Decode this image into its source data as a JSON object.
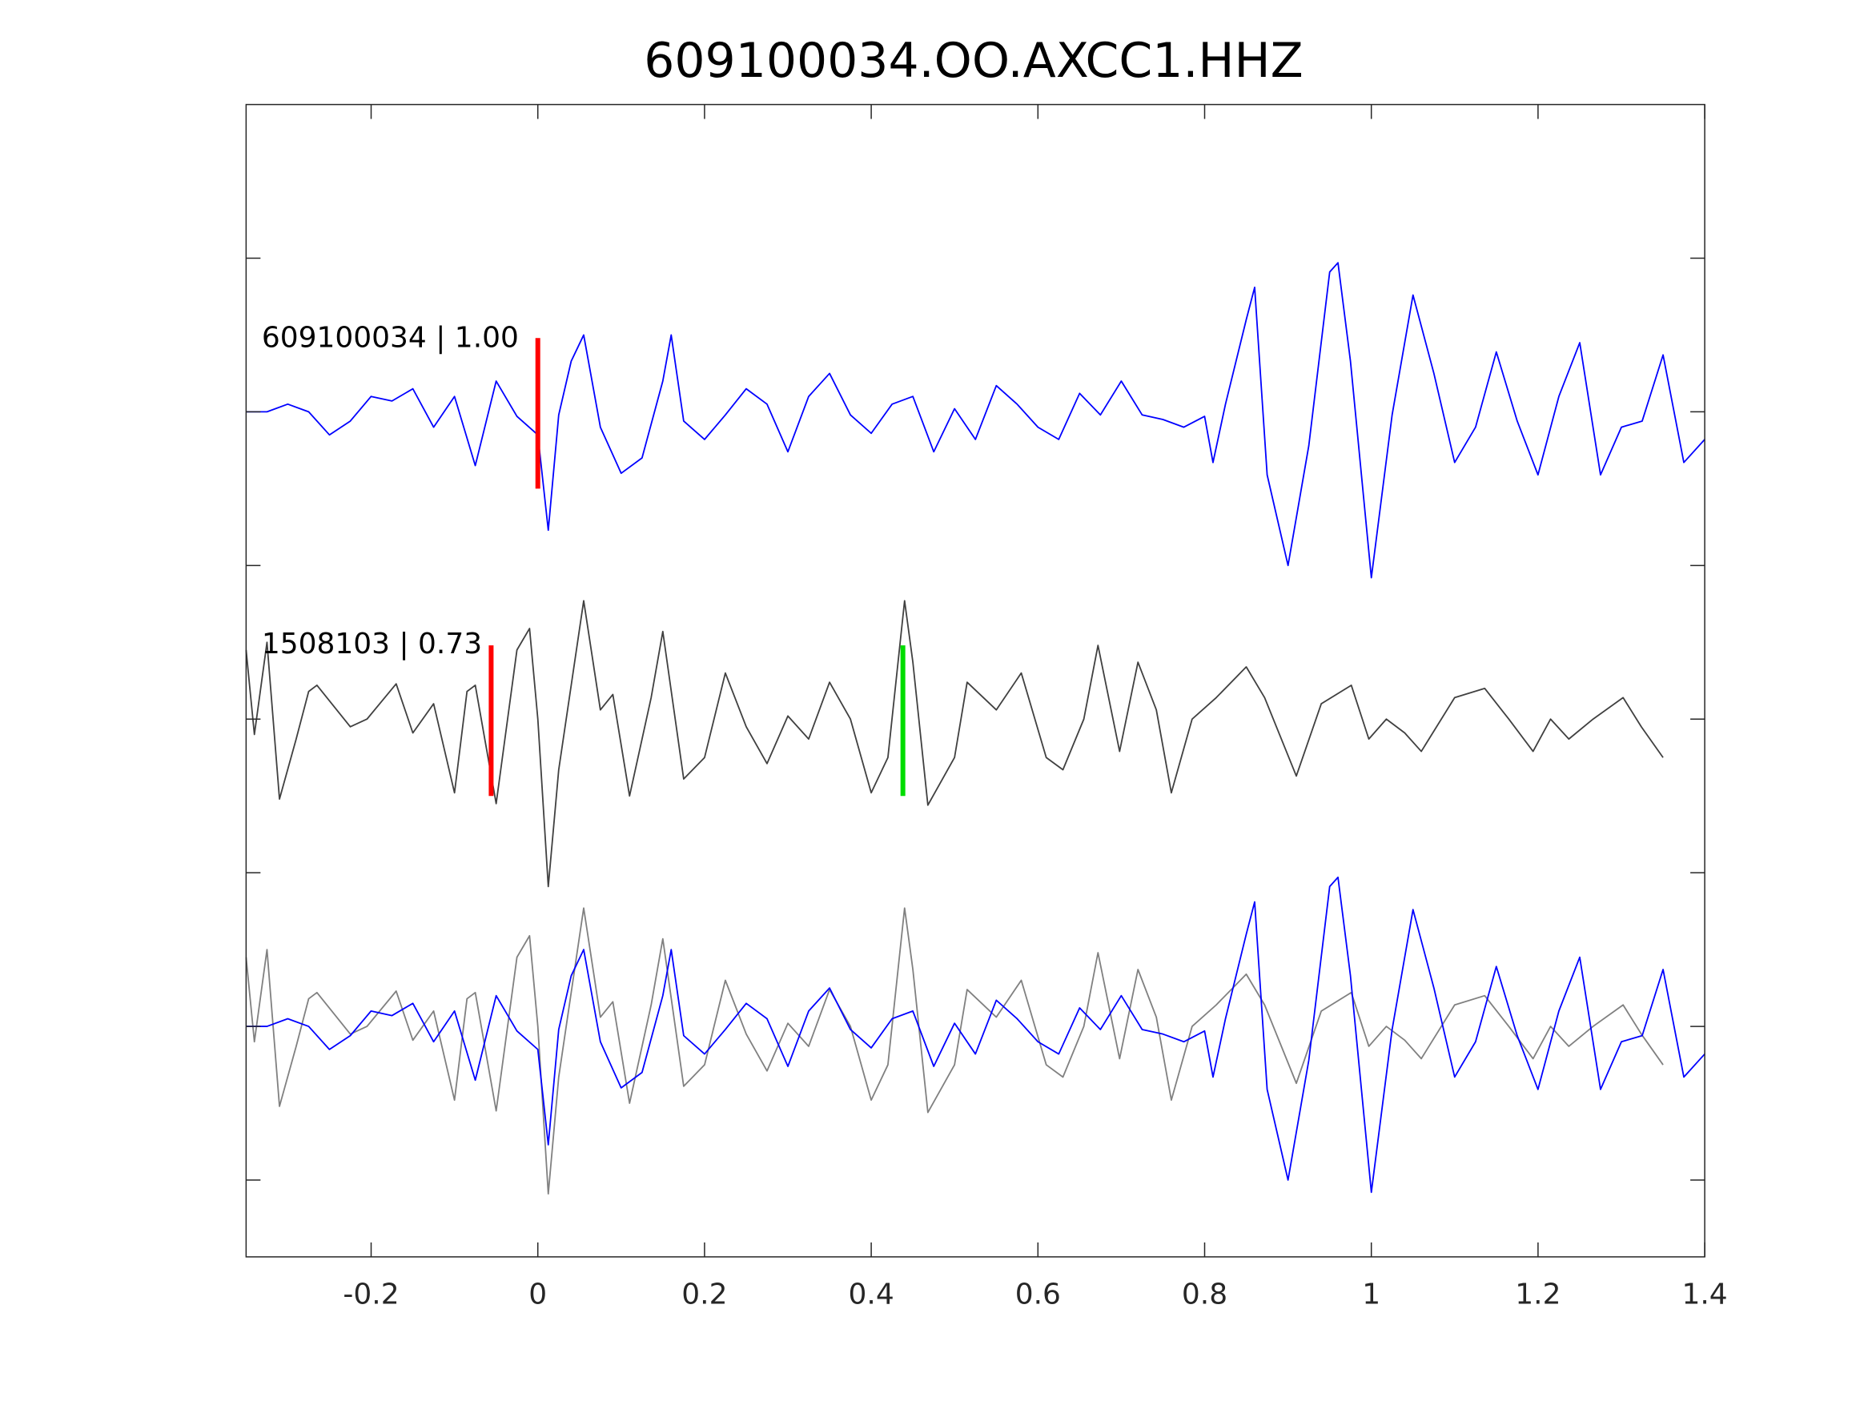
{
  "chart_data": {
    "type": "line",
    "title": "609100034.OO.AXCC1.HHZ",
    "xlabel": "",
    "ylabel": "",
    "xlim": [
      -0.35,
      1.4
    ],
    "ylim": [
      0,
      7.5
    ],
    "xticks": [
      -0.2,
      0,
      0.2,
      0.4,
      0.6,
      0.8,
      1,
      1.2,
      1.4
    ],
    "xtick_labels": [
      "-0.2",
      "0",
      "0.2",
      "0.4",
      "0.6",
      "0.8",
      "1",
      "1.2",
      "1.4"
    ],
    "yticks": [
      0.5,
      1.5,
      2.5,
      3.5,
      4.5,
      5.5,
      6.5
    ],
    "grid": false,
    "trace_labels": [
      {
        "text": "609100034 | 1.00",
        "offset": 5.5
      },
      {
        "text": "1508103 | 0.73",
        "offset": 3.5
      }
    ],
    "series": [
      {
        "name": "609100034",
        "color": "#0000ff",
        "t": [
          -0.35,
          -0.325,
          -0.3,
          -0.275,
          -0.25,
          -0.225,
          -0.2,
          -0.175,
          -0.15,
          -0.125,
          -0.1,
          -0.075,
          -0.05,
          -0.025,
          0,
          0.0125,
          0.025,
          0.04,
          0.055,
          0.075,
          0.1,
          0.125,
          0.15,
          0.16,
          0.175,
          0.2,
          0.225,
          0.25,
          0.275,
          0.3,
          0.325,
          0.35,
          0.375,
          0.4,
          0.425,
          0.45,
          0.475,
          0.5,
          0.525,
          0.55,
          0.575,
          0.6,
          0.625,
          0.65,
          0.675,
          0.7,
          0.725,
          0.75,
          0.775,
          0.8,
          0.81,
          0.825,
          0.85,
          0.86,
          0.875,
          0.9,
          0.925,
          0.95,
          0.96,
          0.975,
          1.0,
          1.025,
          1.05,
          1.075,
          1.1,
          1.125,
          1.15,
          1.175,
          1.2,
          1.225,
          1.25,
          1.275,
          1.3,
          1.325,
          1.35,
          1.375,
          1.4
        ],
        "v": [
          0,
          0,
          0.05,
          0,
          -0.15,
          -0.06,
          0.1,
          0.07,
          0.15,
          -0.1,
          0.1,
          -0.35,
          0.2,
          -0.03,
          -0.15,
          -0.77,
          -0.02,
          0.33,
          0.5,
          -0.1,
          -0.4,
          -0.3,
          0.2,
          0.5,
          -0.06,
          -0.18,
          -0.02,
          0.15,
          0.05,
          -0.26,
          0.1,
          0.25,
          -0.02,
          -0.14,
          0.05,
          0.1,
          -0.26,
          0.02,
          -0.18,
          0.17,
          0.05,
          -0.1,
          -0.18,
          0.12,
          -0.02,
          0.2,
          -0.02,
          -0.05,
          -0.1,
          -0.03,
          -0.33,
          0.05,
          0.6,
          0.81,
          -0.41,
          -1.0,
          -0.22,
          0.91,
          0.97,
          0.33,
          -1.08,
          -0.02,
          0.76,
          0.25,
          -0.33,
          -0.1,
          0.39,
          -0.06,
          -0.41,
          0.1,
          0.45,
          -0.41,
          -0.1,
          -0.06,
          0.37,
          -0.33,
          -0.18
        ]
      },
      {
        "name": "1508103",
        "color": "#404040",
        "t": [
          -0.35,
          -0.34,
          -0.325,
          -0.31,
          -0.29,
          -0.275,
          -0.265,
          -0.225,
          -0.205,
          -0.17,
          -0.15,
          -0.125,
          -0.1,
          -0.085,
          -0.075,
          -0.05,
          -0.025,
          -0.01,
          0,
          0.0125,
          0.025,
          0.04,
          0.055,
          0.075,
          0.09,
          0.11,
          0.136,
          0.15,
          0.175,
          0.2,
          0.225,
          0.25,
          0.275,
          0.3,
          0.325,
          0.35,
          0.375,
          0.4,
          0.42,
          0.44,
          0.45,
          0.468,
          0.5,
          0.515,
          0.55,
          0.58,
          0.61,
          0.63,
          0.655,
          0.672,
          0.698,
          0.72,
          0.742,
          0.76,
          0.785,
          0.814,
          0.85,
          0.872,
          0.91,
          0.94,
          0.976,
          0.997,
          1.018,
          1.04,
          1.06,
          1.1,
          1.136,
          1.165,
          1.194,
          1.215,
          1.237,
          1.266,
          1.302,
          1.324,
          1.35
        ],
        "v": [
          0.45,
          -0.1,
          0.5,
          -0.52,
          -0.13,
          0.18,
          0.22,
          -0.05,
          0,
          0.23,
          -0.09,
          0.1,
          -0.48,
          0.18,
          0.22,
          -0.55,
          0.45,
          0.59,
          0,
          -1.09,
          -0.33,
          0.22,
          0.77,
          0.06,
          0.16,
          -0.5,
          0.14,
          0.57,
          -0.39,
          -0.25,
          0.3,
          -0.05,
          -0.29,
          0.02,
          -0.13,
          0.24,
          0,
          -0.48,
          -0.25,
          0.77,
          0.37,
          -0.56,
          -0.25,
          0.24,
          0.06,
          0.3,
          -0.25,
          -0.33,
          0,
          0.48,
          -0.21,
          0.37,
          0.06,
          -0.48,
          0,
          0.14,
          0.34,
          0.14,
          -0.37,
          0.1,
          0.22,
          -0.13,
          0,
          -0.09,
          -0.21,
          0.14,
          0.2,
          0,
          -0.21,
          0,
          -0.13,
          0,
          0.14,
          -0.05,
          -0.25
        ]
      }
    ],
    "panels": [
      {
        "series": "609100034",
        "offset": 5.5,
        "color": "#0000ff"
      },
      {
        "series": "1508103",
        "offset": 3.5,
        "color": "#404040"
      },
      {
        "series": "1508103",
        "offset": 1.5,
        "color": "#808080"
      },
      {
        "series": "609100034",
        "offset": 1.5,
        "color": "#0000ff"
      }
    ],
    "picks": [
      {
        "t": 0,
        "offset": 5.5,
        "color": "#ff0000"
      },
      {
        "t": -0.056,
        "offset": 3.5,
        "color": "#ff0000"
      },
      {
        "t": 0.438,
        "offset": 3.5,
        "color": "#00dd00"
      }
    ]
  }
}
